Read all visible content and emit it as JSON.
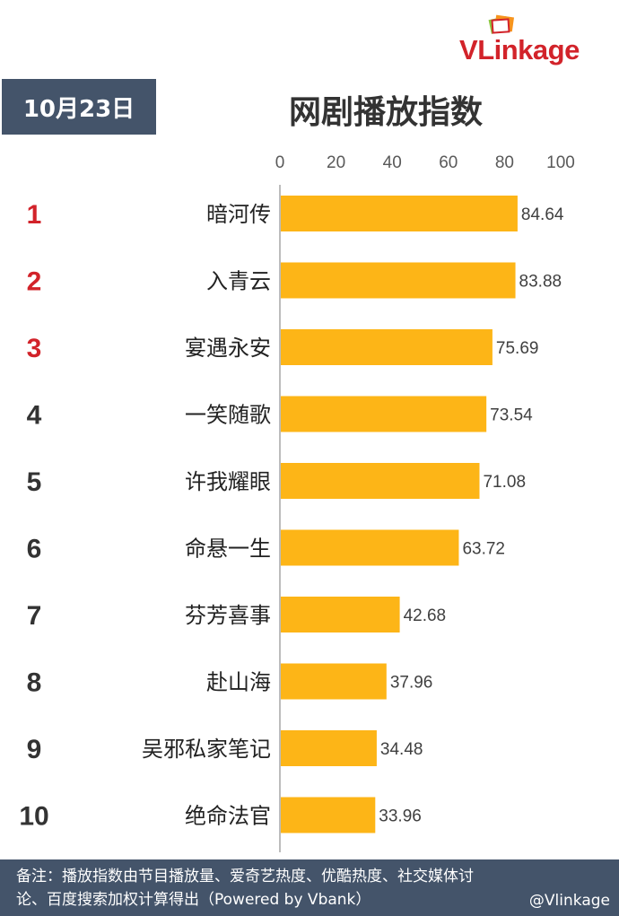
{
  "logo": {
    "text_v": "V",
    "text_rest": "Linkage"
  },
  "date_label": "10月23日",
  "chart_data": {
    "type": "bar",
    "orientation": "horizontal",
    "title": "网剧播放指数",
    "ranks": [
      "1",
      "2",
      "3",
      "4",
      "5",
      "6",
      "7",
      "8",
      "9",
      "10"
    ],
    "categories": [
      "暗河传",
      "入青云",
      "宴遇永安",
      "一笑随歌",
      "许我耀眼",
      "命悬一生",
      "芬芳喜事",
      "赴山海",
      "吴邪私家笔记",
      "绝命法官"
    ],
    "values": [
      84.64,
      83.88,
      75.69,
      73.54,
      71.08,
      63.72,
      42.68,
      37.96,
      34.48,
      33.96
    ],
    "value_labels": [
      "84.64",
      "83.88",
      "75.69",
      "73.54",
      "71.08",
      "63.72",
      "42.68",
      "37.96",
      "34.48",
      "33.96"
    ],
    "xlim": [
      0,
      100
    ],
    "x_ticks": [
      "0",
      "20",
      "40",
      "60",
      "80",
      "100"
    ],
    "grid": false,
    "bar_color": "#fdb517",
    "top_rank_color": "#d2232a",
    "rank_color": "#333333"
  },
  "footer": {
    "note_line1": "备注：播放指数由节目播放量、爱奇艺热度、优酷热度、社交媒体讨",
    "note_line2": "论、百度搜索加权计算得出（Powered by Vbank）",
    "weibo_handle": "@Vlinkage"
  }
}
